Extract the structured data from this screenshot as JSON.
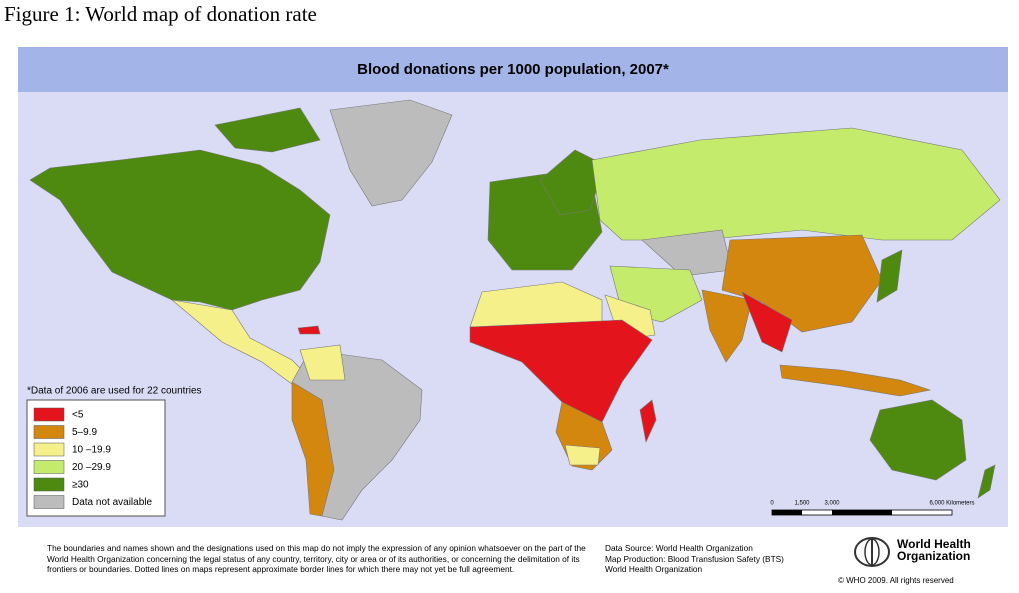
{
  "figure_caption": "Figure 1: World map of donation rate",
  "map": {
    "title": "Blood donations per 1000 population, 2007*",
    "note": "*Data of 2006 are used for 22 countries",
    "legend": [
      {
        "label": "<5",
        "color": "#e3141c"
      },
      {
        "label": "5–9.9",
        "color": "#d4870e"
      },
      {
        "label": "10 –19.9",
        "color": "#f5f08a"
      },
      {
        "label": "20 –29.9",
        "color": "#c4eb6c"
      },
      {
        "label": "≥30",
        "color": "#4f8a10"
      },
      {
        "label": "Data not available",
        "color": "#bdbcbc"
      }
    ],
    "scale_bar": [
      "0",
      "1,500",
      "3,000",
      "6,000 Kilometers"
    ],
    "disclaimer": "The boundaries and names shown and the designations used on this map do not imply the expression of any opinion whatsoever on the part of the World Health Organization concerning the legal status of any country, territory, city or area or of its authorities, or concerning the delimitation of its frontiers or boundaries.  Dotted lines on maps represent approximate border lines for which there may not yet be full agreement.",
    "source": [
      "Data Source: World Health Organization",
      "Map Production: Blood Transfusion Safety (BTS)",
      "World Health Organization"
    ],
    "logo": [
      "World Health",
      "Organization"
    ],
    "copyright": "© WHO 2009. All rights reserved"
  }
}
